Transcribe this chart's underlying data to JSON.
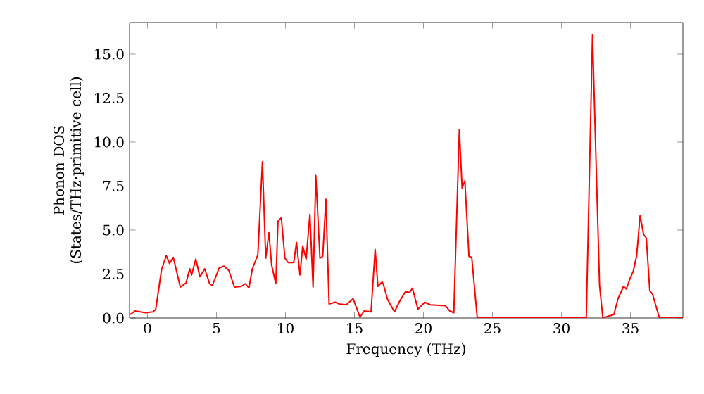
{
  "chart_data": {
    "type": "line",
    "xlabel": "Frequency (THz)",
    "ylabel": "Phonon DOS (States/THz·primitive cell)",
    "xlim": [
      -1.3,
      38.8
    ],
    "ylim": [
      0,
      16.8
    ],
    "xticks": [
      0,
      5,
      10,
      15,
      20,
      25,
      30,
      35
    ],
    "yticks": [
      {
        "value": 0,
        "label": "0.0"
      },
      {
        "value": 2.5,
        "label": "2.5"
      },
      {
        "value": 5,
        "label": "5.0"
      },
      {
        "value": 7.5,
        "label": "7.5"
      },
      {
        "value": 10,
        "label": "10.0"
      },
      {
        "value": 12.5,
        "label": "12.5"
      },
      {
        "value": 15,
        "label": "15.0"
      }
    ],
    "marker": "none",
    "line_style": "solid",
    "series": [
      {
        "color": "#ff0000",
        "x": [
          -1.26,
          -0.9,
          -0.15,
          0.4,
          0.6,
          1.02,
          1.36,
          1.6,
          1.87,
          2.38,
          2.8,
          3.06,
          3.2,
          3.5,
          3.8,
          4.15,
          4.5,
          4.7,
          5.2,
          5.55,
          5.9,
          6.3,
          6.8,
          7.1,
          7.35,
          7.6,
          8.0,
          8.33,
          8.57,
          8.8,
          9.0,
          9.3,
          9.46,
          9.7,
          9.96,
          10.2,
          10.6,
          10.8,
          11.05,
          11.25,
          11.5,
          11.77,
          12.0,
          12.2,
          12.5,
          12.7,
          12.93,
          13.16,
          13.6,
          13.9,
          14.4,
          14.9,
          15.4,
          15.7,
          16.2,
          16.5,
          16.7,
          17.0,
          17.1,
          17.4,
          17.9,
          18.3,
          18.7,
          19.0,
          19.2,
          19.6,
          20.1,
          20.5,
          21.6,
          21.9,
          22.2,
          22.6,
          22.8,
          23.0,
          23.3,
          23.5,
          23.9,
          31.8,
          32.25,
          32.76,
          33.0,
          33.8,
          34.1,
          34.5,
          34.7,
          34.97,
          35.2,
          35.45,
          35.7,
          35.95,
          36.15,
          36.4,
          36.6,
          37.1,
          38.8
        ],
        "values": [
          0.2,
          0.4,
          0.3,
          0.35,
          0.5,
          2.75,
          3.55,
          3.1,
          3.45,
          1.76,
          2.0,
          2.8,
          2.45,
          3.35,
          2.35,
          2.8,
          1.95,
          1.85,
          2.85,
          2.95,
          2.7,
          1.76,
          1.8,
          1.95,
          1.7,
          2.8,
          3.6,
          8.88,
          3.4,
          4.85,
          3.0,
          1.95,
          5.5,
          5.7,
          3.4,
          3.15,
          3.15,
          4.3,
          2.45,
          4.1,
          3.35,
          5.9,
          1.76,
          8.1,
          3.4,
          3.5,
          6.75,
          0.8,
          0.9,
          0.8,
          0.75,
          1.1,
          0.05,
          0.4,
          0.35,
          3.9,
          1.8,
          2.05,
          1.9,
          1.05,
          0.35,
          1.0,
          1.5,
          1.45,
          1.7,
          0.5,
          0.9,
          0.75,
          0.7,
          0.4,
          0.3,
          10.7,
          7.4,
          7.8,
          3.5,
          3.45,
          0.0,
          0.0,
          16.1,
          1.85,
          0.0,
          0.2,
          1.1,
          1.8,
          1.65,
          2.25,
          2.65,
          3.55,
          5.83,
          4.75,
          4.55,
          1.55,
          1.35,
          0.0,
          0.0
        ]
      }
    ]
  }
}
